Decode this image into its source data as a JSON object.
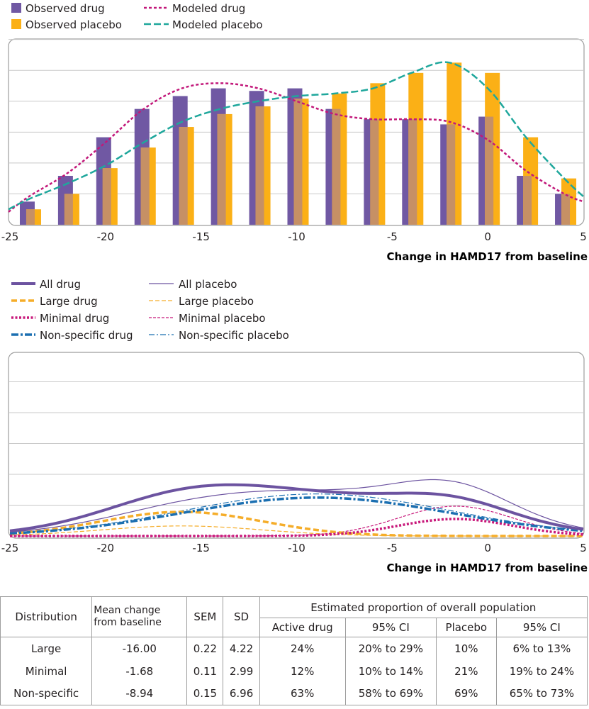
{
  "chart_data": [
    {
      "type": "bar",
      "xlabel": "Change in HAMD17 from baseline",
      "xlim": [
        -25,
        5
      ],
      "xticks": [
        "-25",
        "-20",
        "-15",
        "-10",
        "-5",
        "0",
        "5"
      ],
      "grid": true,
      "legend": {
        "observed_drug": "Observed drug",
        "observed_placebo": "Observed placebo",
        "modeled_drug": "Modeled drug",
        "modeled_placebo": "Modeled placebo"
      },
      "bar_centers": [
        -24,
        -22,
        -20,
        -18,
        -16,
        -14,
        -12,
        -10,
        -8,
        -6,
        -4,
        -2,
        0,
        2,
        4
      ],
      "series": [
        {
          "name": "Observed drug",
          "values": [
            0.9,
            1.9,
            3.4,
            4.5,
            5.0,
            5.3,
            5.2,
            5.3,
            4.5,
            4.1,
            4.1,
            3.9,
            4.2,
            1.9,
            1.2
          ]
        },
        {
          "name": "Observed placebo",
          "values": [
            0.6,
            1.2,
            2.2,
            3.0,
            3.8,
            4.3,
            4.6,
            4.9,
            5.1,
            5.5,
            5.9,
            6.3,
            5.9,
            3.4,
            1.8
          ]
        },
        {
          "name": "Modeled drug",
          "x": [
            -25.5,
            -24,
            -22,
            -20,
            -18,
            -16,
            -14,
            -12,
            -10,
            -8,
            -6,
            -4,
            -2,
            0,
            2,
            4,
            5
          ],
          "values": [
            0.5,
            1.1,
            2.0,
            3.2,
            4.5,
            5.3,
            5.5,
            5.3,
            4.8,
            4.3,
            4.1,
            4.1,
            4.0,
            3.3,
            2.1,
            1.2,
            0.9
          ]
        },
        {
          "name": "Modeled placebo",
          "x": [
            -25.5,
            -24,
            -22,
            -20,
            -18,
            -16,
            -14,
            -12,
            -10,
            -8,
            -6,
            -4,
            -2,
            0,
            2,
            4,
            5
          ],
          "values": [
            0.6,
            1.0,
            1.6,
            2.3,
            3.2,
            4.0,
            4.5,
            4.8,
            5.0,
            5.1,
            5.3,
            5.9,
            6.3,
            5.3,
            3.4,
            1.8,
            1.1
          ]
        }
      ]
    },
    {
      "type": "line",
      "xlabel": "Change in HAMD17 from baseline",
      "xlim": [
        -25,
        5
      ],
      "xticks": [
        "-25",
        "-20",
        "-15",
        "-10",
        "-5",
        "0",
        "5"
      ],
      "grid": true,
      "legend_left": [
        "All drug",
        "Large drug",
        "Minimal drug",
        "Non-specific drug"
      ],
      "legend_right": [
        "All placebo",
        "Large placebo",
        "Minimal placebo",
        "Non-specific placebo"
      ],
      "series": [
        {
          "name": "All drug",
          "mean": null,
          "values": "sum of drug components"
        },
        {
          "name": "Large drug",
          "mean": -16.0,
          "sd": 4.22,
          "proportion": 0.24
        },
        {
          "name": "Minimal drug",
          "mean": -1.68,
          "sd": 2.99,
          "proportion": 0.12
        },
        {
          "name": "Non-specific drug",
          "mean": -8.94,
          "sd": 6.96,
          "proportion": 0.63
        },
        {
          "name": "All placebo",
          "mean": null,
          "values": "sum of placebo components"
        },
        {
          "name": "Large placebo",
          "mean": -16.0,
          "sd": 4.22,
          "proportion": 0.1
        },
        {
          "name": "Minimal placebo",
          "mean": -1.68,
          "sd": 2.99,
          "proportion": 0.21
        },
        {
          "name": "Non-specific placebo",
          "mean": -8.94,
          "sd": 6.96,
          "proportion": 0.69
        }
      ]
    }
  ],
  "colors": {
    "drug": "#7058a3",
    "placebo": "#fbb016",
    "overlap": "#c69065",
    "modeled_drug": "#c2187a",
    "modeled_placebo": "#1fa79c",
    "all": "#6c53a0",
    "large": "#f5ad2a",
    "minimal": "#c8197b",
    "nonspecific": "#1b6fb1",
    "grid": "#c8c8c8"
  },
  "table": {
    "headers": {
      "distribution": "Distribution",
      "mean_change_1": "Mean change",
      "mean_change_2": "from baseline",
      "sem": "SEM",
      "sd": "SD",
      "estimated": "Estimated proportion of overall population",
      "active_drug": "Active drug",
      "ci1": "95% CI",
      "placebo": "Placebo",
      "ci2": "95% CI"
    },
    "rows": [
      {
        "distribution": "Large",
        "mean": "-16.00",
        "sem": "0.22",
        "sd": "4.22",
        "active": "24%",
        "active_ci": "20% to 29%",
        "placebo": "10%",
        "placebo_ci": "6% to 13%"
      },
      {
        "distribution": "Minimal",
        "mean": "-1.68",
        "sem": "0.11",
        "sd": "2.99",
        "active": "12%",
        "active_ci": "10% to 14%",
        "placebo": "21%",
        "placebo_ci": "19% to 24%"
      },
      {
        "distribution": "Non-specific",
        "mean": "-8.94",
        "sem": "0.15",
        "sd": "6.96",
        "active": "63%",
        "active_ci": "58% to 69%",
        "placebo": "69%",
        "placebo_ci": "65% to 73%"
      }
    ]
  }
}
